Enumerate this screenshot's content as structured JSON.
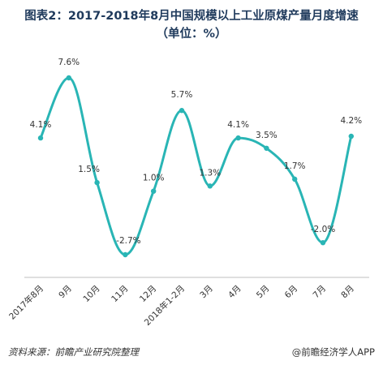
{
  "title_line1": "图表2：2017-2018年8月中国规模以上工业原煤产量月度增速",
  "title_line2": "（单位：%）",
  "footer": {
    "source": "资料来源：前瞻产业研究院整理",
    "brand": "@前瞻经济学人APP"
  },
  "colors": {
    "line": "#29b5b5",
    "title": "#1f3a5c",
    "axis": "#bfbfbf"
  },
  "chart_data": {
    "type": "line",
    "title": "图表2：2017-2018年8月中国规模以上工业原煤产量月度增速",
    "subtitle": "（单位：%）",
    "xlabel": "",
    "ylabel": "",
    "smooth": true,
    "grid": false,
    "categories": [
      "2017年8月",
      "9月",
      "10月",
      "11月",
      "12月",
      "2018年1-2月",
      "3月",
      "4月",
      "5月",
      "6月",
      "7月",
      "8月"
    ],
    "values": [
      4.1,
      7.6,
      1.5,
      -2.7,
      1.0,
      5.7,
      1.3,
      4.1,
      3.5,
      1.7,
      -2.0,
      4.2
    ],
    "data_labels": [
      "4.1%",
      "7.6%",
      "1.5%",
      "-2.7%",
      "1.0%",
      "5.7%",
      "1.3%",
      "4.1%",
      "3.5%",
      "1.7%",
      "-2.0%",
      "4.2%"
    ],
    "ylim": [
      -3.5,
      8.5
    ]
  }
}
